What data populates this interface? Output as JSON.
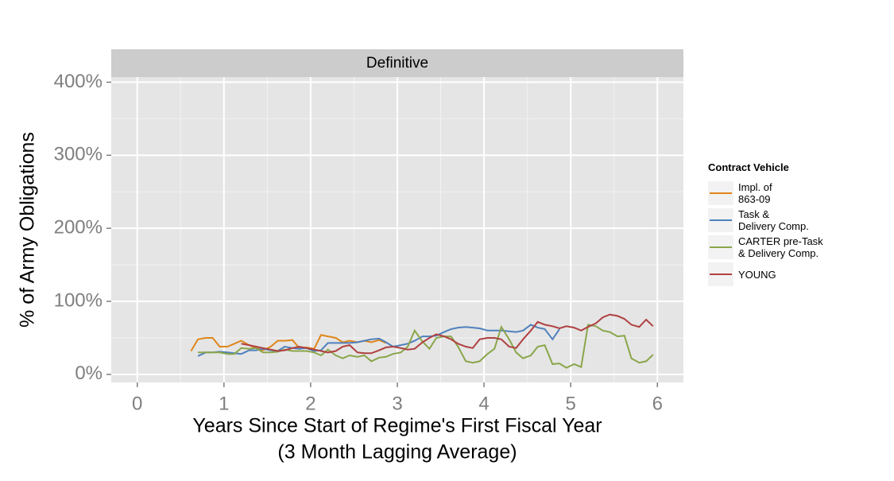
{
  "chart_data": {
    "type": "line",
    "facet": "Definitive",
    "xlabel": "Years Since Start of Regime's First Fiscal Year",
    "xlabel_note": "(3 Month Lagging Average)",
    "ylabel": "% of Army Obligations",
    "legend_title": "Contract Vehicle",
    "legend": "right",
    "grid": true,
    "xlim": [
      -0.3,
      6.3
    ],
    "xticks": [
      0,
      1,
      2,
      3,
      4,
      5,
      6
    ],
    "ylim": [
      -11,
      407
    ],
    "yticks": [
      {
        "value": 0,
        "label": "0%"
      },
      {
        "value": 100,
        "label": "100%"
      },
      {
        "value": 200,
        "label": "200%"
      },
      {
        "value": 300,
        "label": "300%"
      },
      {
        "value": 400,
        "label": "400%"
      }
    ],
    "x": [
      0.62,
      0.7,
      0.79,
      0.87,
      0.95,
      1.04,
      1.12,
      1.2,
      1.29,
      1.37,
      1.45,
      1.54,
      1.62,
      1.7,
      1.79,
      1.87,
      1.95,
      2.04,
      2.12,
      2.2,
      2.29,
      2.37,
      2.45,
      2.54,
      2.62,
      2.7,
      2.79,
      2.87,
      2.95,
      3.04,
      3.12,
      3.2,
      3.29,
      3.37,
      3.45,
      3.54,
      3.62,
      3.7,
      3.79,
      3.87,
      3.95,
      4.04,
      4.12,
      4.2,
      4.29,
      4.37,
      4.45,
      4.54,
      4.62,
      4.7,
      4.79,
      4.87,
      4.95,
      5.04,
      5.12,
      5.2,
      5.29,
      5.37,
      5.45,
      5.54,
      5.62,
      5.7,
      5.79,
      5.87,
      5.95
    ],
    "series": [
      {
        "name": "Impl. of\n863-09",
        "color": "#e0861a",
        "values": [
          32,
          48,
          50,
          50,
          38,
          38,
          42,
          46,
          40,
          36,
          33,
          38,
          46,
          46,
          47,
          36,
          37,
          35,
          54,
          52,
          50,
          44,
          46,
          44,
          46,
          44,
          47,
          43,
          null,
          null,
          null,
          null,
          null,
          null,
          null,
          null,
          null,
          null,
          null,
          null,
          null,
          null,
          null,
          null,
          null,
          null,
          null,
          null,
          null,
          null,
          null,
          null,
          null,
          null,
          null,
          null,
          null,
          null,
          null,
          null,
          null,
          null,
          null,
          null,
          null
        ]
      },
      {
        "name": "Task &\nDelivery Comp.",
        "color": "#4f81bd",
        "values": [
          null,
          25,
          30,
          30,
          31,
          30,
          29,
          28,
          33,
          33,
          35,
          33,
          32,
          38,
          36,
          35,
          36,
          32,
          33,
          43,
          43,
          43,
          43,
          44,
          46,
          48,
          49,
          44,
          38,
          40,
          42,
          46,
          52,
          52,
          53,
          58,
          62,
          64,
          65,
          64,
          63,
          60,
          60,
          60,
          59,
          58,
          60,
          68,
          64,
          62,
          48,
          62,
          null,
          null,
          null,
          null,
          null,
          null,
          null,
          null,
          null,
          null,
          null,
          null,
          null
        ]
      },
      {
        "name": "CARTER pre-Task\n& Delivery Comp.",
        "color": "#8aa64a",
        "values": [
          null,
          30,
          30,
          30,
          30,
          28,
          28,
          36,
          35,
          36,
          30,
          30,
          31,
          34,
          32,
          32,
          32,
          30,
          26,
          34,
          26,
          22,
          26,
          24,
          26,
          18,
          23,
          24,
          28,
          30,
          38,
          60,
          45,
          35,
          50,
          52,
          52,
          38,
          18,
          16,
          18,
          28,
          35,
          65,
          48,
          30,
          22,
          26,
          38,
          40,
          14,
          15,
          9,
          14,
          10,
          68,
          66,
          60,
          58,
          52,
          53,
          22,
          16,
          18,
          27
        ]
      },
      {
        "name": "YOUNG",
        "color": "#b04040",
        "values": [
          null,
          null,
          null,
          null,
          null,
          null,
          null,
          42,
          40,
          38,
          36,
          34,
          32,
          33,
          36,
          38,
          36,
          34,
          32,
          30,
          32,
          38,
          40,
          30,
          29,
          29,
          33,
          37,
          38,
          36,
          34,
          35,
          44,
          50,
          55,
          52,
          48,
          42,
          38,
          36,
          48,
          50,
          50,
          48,
          38,
          36,
          48,
          60,
          72,
          68,
          66,
          63,
          66,
          64,
          60,
          65,
          70,
          78,
          82,
          80,
          76,
          68,
          65,
          75,
          66
        ]
      }
    ]
  }
}
